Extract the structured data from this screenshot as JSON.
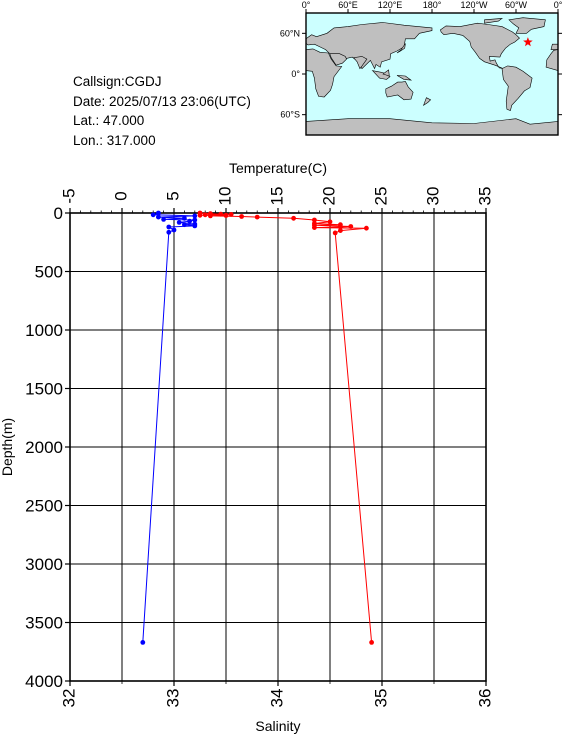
{
  "station": {
    "callsign": "Callsign:CGDJ",
    "date": "Date:  2025/07/13 23:06(UTC)",
    "lat": "Lat.:  47.000",
    "lon": "Lon.:  317.000"
  },
  "map": {
    "top_labels": [
      "0°",
      "60°E",
      "120°E",
      "180°",
      "120°W",
      "60°W",
      "0°"
    ],
    "side_labels": [
      "60°N",
      "0°",
      "60°S"
    ],
    "ocean_color": "#ccffff",
    "land_color": "#bfbfbf",
    "marker": {
      "lon": 317,
      "lat": 47,
      "symbol": "star",
      "color": "#ff0000"
    }
  },
  "chart_data": {
    "type": "line",
    "ylabel": "Depth(m)",
    "top_axis_label": "Temperature(C)",
    "bottom_axis_label": "Salinity",
    "ylim": [
      0,
      4000
    ],
    "yticks": [
      "0",
      "500",
      "1000",
      "1500",
      "2000",
      "2500",
      "3000",
      "3500",
      "4000"
    ],
    "temperature_xlim": [
      -5,
      35
    ],
    "temperature_ticks": [
      "-5",
      "0",
      "5",
      "10",
      "15",
      "20",
      "25",
      "30",
      "35"
    ],
    "salinity_xlim": [
      32,
      36
    ],
    "salinity_ticks": [
      "32",
      "33",
      "34",
      "35",
      "36"
    ],
    "grid": true,
    "series": [
      {
        "axis": "temperature",
        "color": "#ff0000",
        "points": [
          [
            7.5,
            0
          ],
          [
            8.5,
            5
          ],
          [
            9.5,
            10
          ],
          [
            10.5,
            12
          ],
          [
            8,
            15
          ],
          [
            10,
            18
          ],
          [
            7.5,
            20
          ],
          [
            10,
            22
          ],
          [
            8.5,
            25
          ],
          [
            11.5,
            30
          ],
          [
            13,
            35
          ],
          [
            16.5,
            45
          ],
          [
            18.5,
            60
          ],
          [
            20,
            75
          ],
          [
            18.5,
            90
          ],
          [
            21,
            100
          ],
          [
            18.5,
            105
          ],
          [
            22,
            115
          ],
          [
            21,
            120
          ],
          [
            18.5,
            125
          ],
          [
            23.5,
            130
          ],
          [
            21,
            150
          ],
          [
            20.5,
            170
          ],
          [
            24,
            3670
          ]
        ]
      },
      {
        "axis": "salinity",
        "color": "#0000ff",
        "points": [
          [
            32.85,
            0
          ],
          [
            32.8,
            15
          ],
          [
            33.2,
            25
          ],
          [
            32.85,
            35
          ],
          [
            33.1,
            45
          ],
          [
            32.9,
            55
          ],
          [
            33.2,
            60
          ],
          [
            33.15,
            70
          ],
          [
            33.05,
            80
          ],
          [
            33.2,
            95
          ],
          [
            33.1,
            100
          ],
          [
            33.2,
            110
          ],
          [
            32.95,
            120
          ],
          [
            33.0,
            145
          ],
          [
            32.95,
            165
          ],
          [
            32.7,
            3670
          ]
        ]
      }
    ]
  }
}
